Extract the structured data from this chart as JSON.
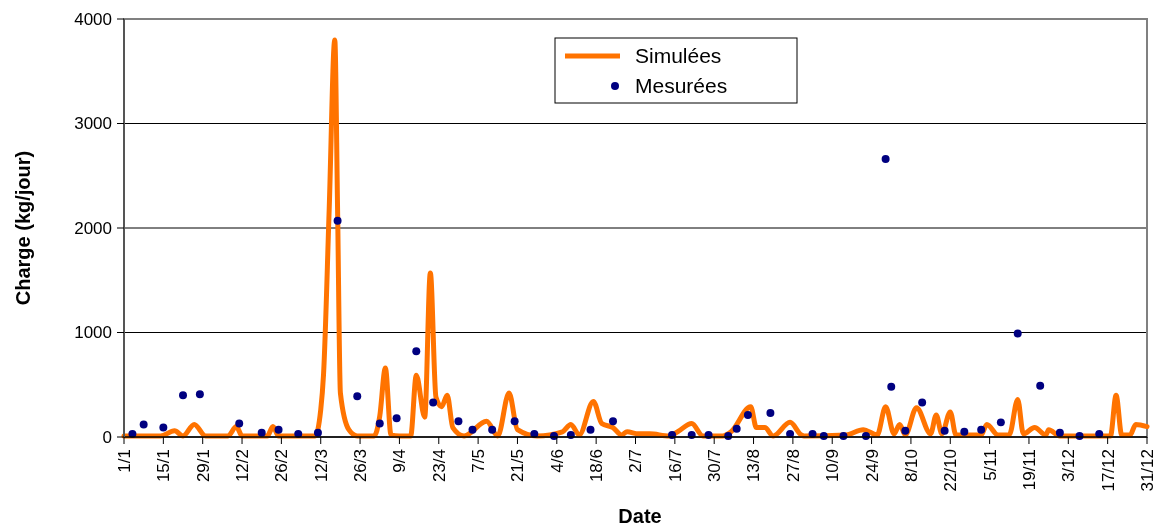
{
  "chart_data": {
    "type": "line",
    "xlabel": "Date",
    "ylabel": "Charge (kg/jour)",
    "xlim": [
      "--01-01",
      "--12-31"
    ],
    "ylim": [
      0,
      4000
    ],
    "yticks": [
      0,
      1000,
      2000,
      3000,
      4000
    ],
    "xticks": [
      {
        "value": "--01-01",
        "label": "1/1"
      },
      {
        "value": "--01-15",
        "label": "15/1"
      },
      {
        "value": "--01-29",
        "label": "29/1"
      },
      {
        "value": "--02-12",
        "label": "12/2"
      },
      {
        "value": "--02-26",
        "label": "26/2"
      },
      {
        "value": "--03-12",
        "label": "12/3"
      },
      {
        "value": "--03-26",
        "label": "26/3"
      },
      {
        "value": "--04-09",
        "label": "9/4"
      },
      {
        "value": "--04-23",
        "label": "23/4"
      },
      {
        "value": "--05-07",
        "label": "7/5"
      },
      {
        "value": "--05-21",
        "label": "21/5"
      },
      {
        "value": "--06-04",
        "label": "4/6"
      },
      {
        "value": "--06-18",
        "label": "18/6"
      },
      {
        "value": "--07-02",
        "label": "2/7"
      },
      {
        "value": "--07-16",
        "label": "16/7"
      },
      {
        "value": "--07-30",
        "label": "30/7"
      },
      {
        "value": "--08-13",
        "label": "13/8"
      },
      {
        "value": "--08-27",
        "label": "27/8"
      },
      {
        "value": "--09-10",
        "label": "10/9"
      },
      {
        "value": "--09-24",
        "label": "24/9"
      },
      {
        "value": "--10-08",
        "label": "8/10"
      },
      {
        "value": "--10-22",
        "label": "22/10"
      },
      {
        "value": "--11-05",
        "label": "5/11"
      },
      {
        "value": "--11-19",
        "label": "19/11"
      },
      {
        "value": "--12-03",
        "label": "3/12"
      },
      {
        "value": "--12-17",
        "label": "17/12"
      },
      {
        "value": "--12-31",
        "label": "31/12"
      }
    ],
    "grid": "y",
    "legend": "top",
    "series": [
      {
        "name": "Simulées",
        "type": "line",
        "color": "#ff7300",
        "line_style": "solid",
        "x": [
          "--01-01",
          "--01-14",
          "--01-19",
          "--01-22",
          "--01-26",
          "--01-30",
          "--02-07",
          "--02-10",
          "--02-12",
          "--02-21",
          "--02-23",
          "--02-25",
          "--03-10",
          "--03-12",
          "--03-13",
          "--03-15",
          "--03-17",
          "--03-18",
          "--03-19",
          "--03-22",
          "--03-25",
          "--03-31",
          "--04-02",
          "--04-04",
          "--04-06",
          "--04-09",
          "--04-13",
          "--04-15",
          "--04-18",
          "--04-20",
          "--04-22",
          "--04-24",
          "--04-26",
          "--04-28",
          "--05-02",
          "--05-10",
          "--05-14",
          "--05-18",
          "--05-21",
          "--05-28",
          "--06-06",
          "--06-09",
          "--06-12",
          "--06-17",
          "--06-20",
          "--06-24",
          "--06-27",
          "--06-29",
          "--07-03",
          "--07-07",
          "--07-14",
          "--07-17",
          "--07-22",
          "--07-26",
          "--08-02",
          "--08-05",
          "--08-12",
          "--08-14",
          "--08-17",
          "--08-20",
          "--08-26",
          "--08-30",
          "--08-31",
          "--09-15",
          "--09-21",
          "--09-26",
          "--09-29",
          "--10-02",
          "--10-04",
          "--10-06",
          "--10-10",
          "--10-15",
          "--10-17",
          "--10-19",
          "--10-22",
          "--10-24",
          "--11-02",
          "--11-04",
          "--11-08",
          "--11-12",
          "--11-15",
          "--11-17",
          "--11-21",
          "--11-25",
          "--11-26",
          "--11-30",
          "--12-18",
          "--12-20",
          "--12-22",
          "--12-25",
          "--12-27",
          "--12-31"
        ],
        "values": [
          10,
          10,
          60,
          10,
          120,
          10,
          10,
          100,
          10,
          10,
          100,
          10,
          10,
          260,
          600,
          2170,
          3800,
          2170,
          420,
          70,
          10,
          10,
          200,
          660,
          20,
          10,
          10,
          590,
          190,
          1570,
          380,
          290,
          400,
          90,
          10,
          150,
          10,
          420,
          70,
          10,
          50,
          120,
          20,
          340,
          130,
          90,
          20,
          50,
          30,
          30,
          10,
          50,
          130,
          10,
          10,
          50,
          290,
          90,
          90,
          10,
          140,
          20,
          10,
          20,
          70,
          20,
          290,
          30,
          120,
          20,
          280,
          30,
          210,
          30,
          240,
          20,
          20,
          120,
          20,
          20,
          360,
          30,
          90,
          20,
          70,
          10,
          10,
          400,
          20,
          20,
          120,
          100
        ]
      },
      {
        "name": "Mesurées",
        "type": "scatter",
        "color": "#000080",
        "marker": "circle",
        "x": [
          "--01-04",
          "--01-08",
          "--01-15",
          "--01-22",
          "--01-28",
          "--02-11",
          "--02-19",
          "--02-25",
          "--03-04",
          "--03-11",
          "--03-18",
          "--03-25",
          "--04-02",
          "--04-08",
          "--04-15",
          "--04-21",
          "--04-30",
          "--05-05",
          "--05-12",
          "--05-20",
          "--05-27",
          "--06-03",
          "--06-09",
          "--06-16",
          "--06-24",
          "--07-15",
          "--07-22",
          "--07-28",
          "--08-04",
          "--08-07",
          "--08-11",
          "--08-19",
          "--08-26",
          "--09-03",
          "--09-07",
          "--09-14",
          "--09-22",
          "--09-29",
          "--10-01",
          "--10-06",
          "--10-12",
          "--10-20",
          "--10-27",
          "--11-02",
          "--11-09",
          "--11-15",
          "--11-23",
          "--11-30",
          "--12-07",
          "--12-14"
        ],
        "values": [
          30,
          120,
          90,
          400,
          410,
          130,
          40,
          70,
          30,
          40,
          2070,
          390,
          130,
          180,
          820,
          330,
          150,
          70,
          70,
          150,
          30,
          10,
          20,
          70,
          150,
          20,
          20,
          20,
          10,
          80,
          210,
          230,
          30,
          30,
          10,
          10,
          10,
          2660,
          480,
          60,
          330,
          60,
          50,
          70,
          140,
          990,
          490,
          40,
          10,
          30
        ]
      }
    ]
  }
}
